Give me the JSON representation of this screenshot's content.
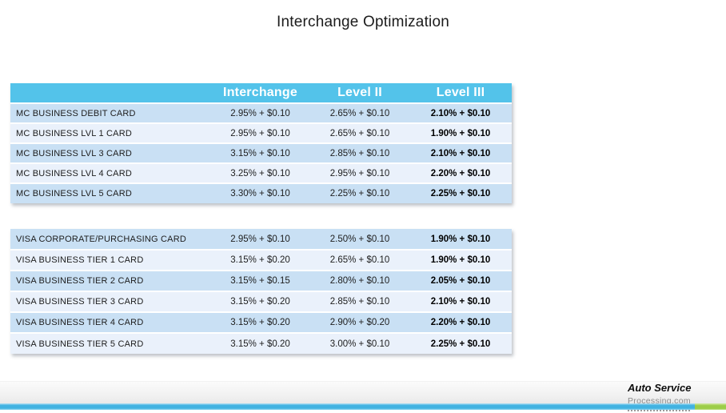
{
  "slide": {
    "title": "Interchange Optimization"
  },
  "rate_table": {
    "column_headers": [
      "Interchange",
      "Level II",
      "Level III"
    ],
    "mastercard_rows": [
      {
        "card": "MC BUSINESS DEBIT CARD",
        "interchange": "2.95% + $0.10",
        "level_ii": "2.65% + $0.10",
        "level_iii": "2.10% + $0.10"
      },
      {
        "card": "MC BUSINESS LVL 1 CARD",
        "interchange": "2.95% + $0.10",
        "level_ii": "2.65% + $0.10",
        "level_iii": "1.90% + $0.10"
      },
      {
        "card": "MC BUSINESS LVL 3 CARD",
        "interchange": "3.15% + $0.10",
        "level_ii": "2.85% + $0.10",
        "level_iii": "2.10% + $0.10"
      },
      {
        "card": "MC BUSINESS LVL 4 CARD",
        "interchange": "3.25% + $0.10",
        "level_ii": "2.95% + $0.10",
        "level_iii": "2.20% + $0.10"
      },
      {
        "card": "MC BUSINESS LVL 5 CARD",
        "interchange": "3.30% + $0.10",
        "level_ii": "2.25% + $0.10",
        "level_iii": "2.25% + $0.10"
      }
    ],
    "visa_rows": [
      {
        "card": "VISA CORPORATE/PURCHASING CARD",
        "interchange": "2.95% + $0.10",
        "level_ii": "2.50% + $0.10",
        "level_iii": "1.90% + $0.10"
      },
      {
        "card": "VISA BUSINESS TIER 1 CARD",
        "interchange": "3.15% + $0.20",
        "level_ii": "2.65% + $0.10",
        "level_iii": "1.90% + $0.10"
      },
      {
        "card": "VISA BUSINESS TIER 2 CARD",
        "interchange": "3.15% + $0.15",
        "level_ii": "2.80% + $0.10",
        "level_iii": "2.05% + $0.10"
      },
      {
        "card": "VISA BUSINESS TIER 3 CARD",
        "interchange": "3.15% + $0.20",
        "level_ii": "2.85% + $0.10",
        "level_iii": "2.10% + $0.10"
      },
      {
        "card": "VISA BUSINESS TIER 4 CARD",
        "interchange": "3.15% + $0.20",
        "level_ii": "2.90% + $0.20",
        "level_iii": "2.20% + $0.10"
      },
      {
        "card": "VISA BUSINESS TIER 5 CARD",
        "interchange": "3.15% + $0.20",
        "level_ii": "3.00% + $0.10",
        "level_iii": "2.25% + $0.10"
      }
    ]
  },
  "footer": {
    "logo_name": "Auto Service",
    "logo_domain": "Processing.com"
  },
  "colors": {
    "header_blue": "#53c3ea",
    "row_stripe_dark": "#c9e0f4",
    "row_stripe_light": "#eaf1fb",
    "footer_bar_blue": "#41b2e1",
    "footer_bar_green": "#9ccd48"
  }
}
